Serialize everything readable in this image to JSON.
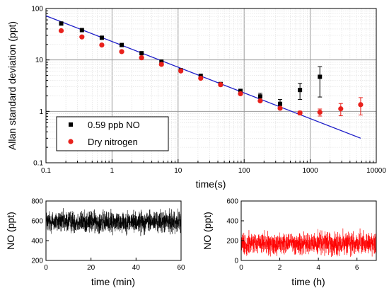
{
  "chart_data": [
    {
      "type": "scatter",
      "xlabel": "time(s)",
      "ylabel": "Allan standard deviation (ppt)",
      "xscale": "log",
      "yscale": "log",
      "xlim": [
        0.1,
        10000
      ],
      "ylim": [
        0.1,
        100
      ],
      "x_tick_labels": [
        "0.1",
        "1",
        "10",
        "100",
        "1000",
        "10000"
      ],
      "y_tick_labels": [
        "0.1",
        "1",
        "10",
        "100"
      ],
      "grid": true,
      "legend_position": "bottom-left",
      "series": [
        {
          "name": "0.59 ppb NO",
          "color": "#000000",
          "marker": "square",
          "x": [
            0.17,
            0.35,
            0.7,
            1.4,
            2.8,
            5.6,
            11,
            22,
            44,
            88,
            175,
            350,
            700,
            1400
          ],
          "y": [
            51,
            38,
            27,
            19.5,
            13.5,
            9.3,
            6.3,
            4.9,
            3.4,
            2.5,
            1.95,
            1.4,
            2.6,
            4.7
          ],
          "yerr_low": [
            0,
            0,
            0,
            0,
            0,
            0,
            0,
            0,
            0,
            0,
            0.3,
            0.25,
            0.9,
            2.8
          ],
          "yerr_high": [
            0,
            0,
            0,
            0,
            0,
            0,
            0,
            0,
            0,
            0,
            0.3,
            0.3,
            0.9,
            2.7
          ]
        },
        {
          "name": "Dry nitrogen",
          "color": "#e8211c",
          "marker": "circle",
          "x": [
            0.17,
            0.35,
            0.7,
            1.4,
            2.8,
            5.6,
            11,
            22,
            44,
            88,
            175,
            350,
            700,
            1400,
            2900,
            5800
          ],
          "y": [
            37,
            28,
            19.5,
            14.5,
            11,
            8.2,
            6.1,
            4.4,
            3.3,
            2.2,
            1.6,
            1.15,
            0.93,
            0.96,
            1.12,
            1.35
          ],
          "yerr_low": [
            0,
            0,
            0,
            0,
            0,
            0,
            0,
            0,
            0,
            0,
            0,
            0,
            0.08,
            0.15,
            0.3,
            0.5
          ],
          "yerr_high": [
            0,
            0,
            0,
            0,
            0,
            0,
            0,
            0,
            0,
            0,
            0,
            0,
            0.08,
            0.15,
            0.3,
            0.5
          ]
        }
      ],
      "fit_line": {
        "color": "#1d1dc8",
        "x": [
          0.1,
          5800
        ],
        "y": [
          72,
          0.3
        ]
      }
    },
    {
      "type": "line",
      "xlabel": "time (min)",
      "ylabel": "NO (ppt)",
      "xlim": [
        0,
        60
      ],
      "ylim": [
        200,
        800
      ],
      "x_tick_labels": [
        "0",
        "20",
        "40",
        "60"
      ],
      "y_tick_labels": [
        "200",
        "400",
        "600",
        "800"
      ],
      "color": "#000000",
      "mean": 590,
      "noise_amplitude": 100,
      "points": 1500
    },
    {
      "type": "line",
      "xlabel": "time (h)",
      "ylabel": "NO (ppt)",
      "xlim": [
        0,
        7
      ],
      "ylim": [
        0,
        600
      ],
      "x_tick_labels": [
        "0",
        "2",
        "4",
        "6"
      ],
      "y_tick_labels": [
        "0",
        "200",
        "400",
        "600"
      ],
      "color": "#ff0000",
      "mean": 170,
      "noise_amplitude": 100,
      "points": 1500
    }
  ]
}
